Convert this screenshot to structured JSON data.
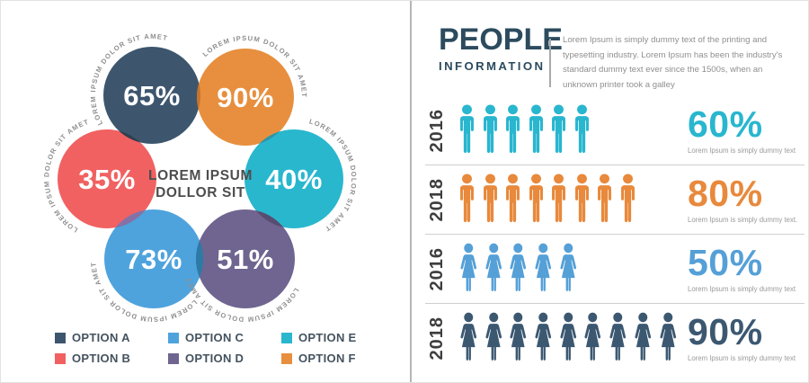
{
  "left": {
    "ring_label": "LOREM IPSUM DOLOR SIT AMET",
    "center_title_line1": "LOREM IPSUM",
    "center_title_line2": "DOLLOR SIT",
    "circles": [
      {
        "id": "A",
        "percent": "65%",
        "color": "#3d566e",
        "label": "OPTION A"
      },
      {
        "id": "B",
        "percent": "35%",
        "color": "#f16161",
        "label": "OPTION B"
      },
      {
        "id": "C",
        "percent": "73%",
        "color": "#4ea3dd",
        "label": "OPTION C"
      },
      {
        "id": "D",
        "percent": "51%",
        "color": "#6f6590",
        "label": "OPTION D"
      },
      {
        "id": "E",
        "percent": "40%",
        "color": "#29b7ce",
        "label": "OPTION E"
      },
      {
        "id": "F",
        "percent": "90%",
        "color": "#e78f3e",
        "label": "OPTION F"
      }
    ],
    "overlaps": {
      "ab": "#323f4e",
      "af": "#c9722b",
      "fe": "#2e95a8",
      "ed": "#574d71",
      "bc": "#8671a7",
      "cd": "#2b7ba6"
    }
  },
  "right": {
    "title": "PEOPLE",
    "subtitle": "INFORMATION",
    "intro": "Lorem Ipsum is simply dummy text of the printing and typesetting industry. Lorem Ipsum has been the industry's standard dummy text ever since the 1500s, when an unknown printer took a galley",
    "rows": [
      {
        "year": "2016",
        "icon": "male",
        "count": 6,
        "color": "#29b6cf",
        "percent": "60%",
        "caption": "Lorem Ipsum is simply dummy text"
      },
      {
        "year": "2018",
        "icon": "male",
        "count": 8,
        "color": "#e8893c",
        "percent": "80%",
        "caption": "Lorem Ipsum is simply dummy text."
      },
      {
        "year": "2016",
        "icon": "female",
        "count": 5,
        "color": "#55a0d7",
        "percent": "50%",
        "caption": "Lorem Ipsum is simply dummy text"
      },
      {
        "year": "2018",
        "icon": "female",
        "count": 9,
        "color": "#3c5871",
        "percent": "90%",
        "caption": "Lorem Ipsum is simply dummy text"
      }
    ]
  },
  "chart_data": [
    {
      "type": "bubble",
      "title": "LOREM IPSUM DOLLOR SIT",
      "ring_annotation": "LOREM IPSUM DOLOR SIT AMET",
      "legend_position": "bottom",
      "series": [
        {
          "name": "OPTION A",
          "value": 65,
          "color": "#3d566e"
        },
        {
          "name": "OPTION B",
          "value": 35,
          "color": "#f16161"
        },
        {
          "name": "OPTION C",
          "value": 73,
          "color": "#4ea3dd"
        },
        {
          "name": "OPTION D",
          "value": 51,
          "color": "#6f6590"
        },
        {
          "name": "OPTION E",
          "value": 40,
          "color": "#29b7ce"
        },
        {
          "name": "OPTION F",
          "value": 90,
          "color": "#e78f3e"
        }
      ]
    },
    {
      "type": "bar",
      "subtype": "pictogram",
      "title": "PEOPLE INFORMATION",
      "categories": [
        "2016",
        "2018",
        "2016",
        "2018"
      ],
      "values": [
        60,
        80,
        50,
        90
      ],
      "unit": "%",
      "icon_counts": [
        6,
        8,
        5,
        9
      ],
      "icon_types": [
        "male",
        "male",
        "female",
        "female"
      ],
      "colors": [
        "#29b6cf",
        "#e8893c",
        "#55a0d7",
        "#3c5871"
      ]
    }
  ]
}
